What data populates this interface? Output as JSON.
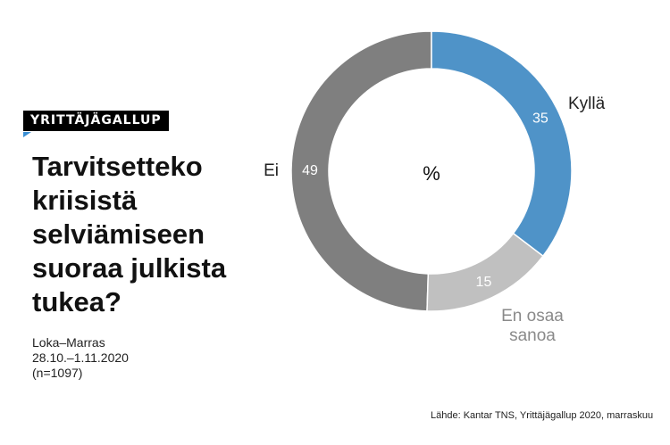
{
  "badge": "YRITTÄJÄGALLUP",
  "title": "Tarvitsetteko kriisistä selviämiseen suoraa julkista tukea?",
  "subtitle": [
    "Loka–Marras",
    "28.10.–1.11.2020",
    "(n=1097)"
  ],
  "source": "Lähde: Kantar TNS, Yrittäjägallup 2020, marraskuu",
  "chart_data": {
    "type": "pie",
    "donut": true,
    "title": "Tarvitsetteko kriisistä selviämiseen suoraa julkista tukea?",
    "center_label": "%",
    "categories": [
      "Kyllä",
      "En osaa sanoa",
      "Ei"
    ],
    "values": [
      35,
      15,
      49
    ],
    "colors": [
      "#4f93c8",
      "#c0c0c0",
      "#7f7f7f"
    ],
    "label_colors": [
      "#222222",
      "#8a8a8a",
      "#222222"
    ],
    "label_lines": [
      [
        "Kyllä"
      ],
      [
        "En osaa",
        "sanoa"
      ],
      [
        "Ei"
      ]
    ]
  }
}
